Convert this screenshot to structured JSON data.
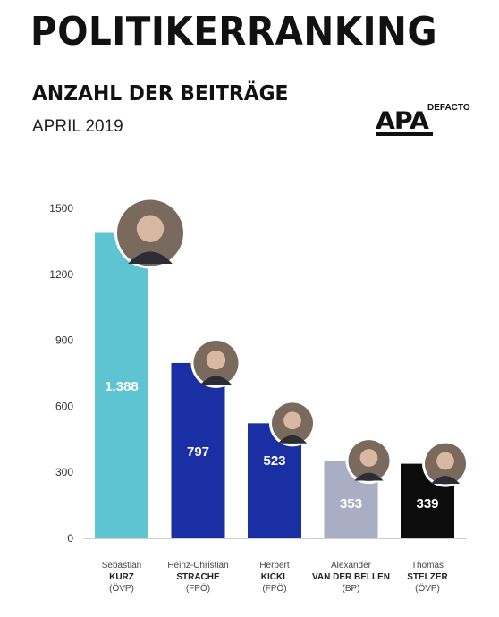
{
  "header": {
    "title": "POLITIKERRANKING",
    "subtitle": "ANZAHL DER BEITRÄGE",
    "date": "APRIL 2019"
  },
  "logo": {
    "word": "APA",
    "sub": "DEFACTO"
  },
  "chart_data": {
    "type": "bar",
    "ylim": [
      0,
      1500
    ],
    "yticks": [
      0,
      300,
      600,
      900,
      1200,
      1500
    ],
    "grid": false,
    "bars": [
      {
        "first": "Sebastian",
        "last": "KURZ",
        "party": "(ÖVP)",
        "value": 1388,
        "label": "1.388",
        "color": "#5ec4d1",
        "portrait": "kurz-portrait"
      },
      {
        "first": "Heinz-Christian",
        "last": "STRACHE",
        "party": "(FPÖ)",
        "value": 797,
        "label": "797",
        "color": "#1b2fa5",
        "portrait": "strache-portrait"
      },
      {
        "first": "Herbert",
        "last": "KICKL",
        "party": "(FPÖ)",
        "value": 523,
        "label": "523",
        "color": "#1b2fa5",
        "portrait": "kickl-portrait"
      },
      {
        "first": "Alexander",
        "last": "VAN DER BELLEN",
        "party": "(BP)",
        "value": 353,
        "label": "353",
        "color": "#a9aec4",
        "portrait": "van-der-bellen-portrait"
      },
      {
        "first": "Thomas",
        "last": "STELZER",
        "party": "(ÖVP)",
        "value": 339,
        "label": "339",
        "color": "#0c0c0c",
        "portrait": "stelzer-portrait"
      }
    ]
  }
}
